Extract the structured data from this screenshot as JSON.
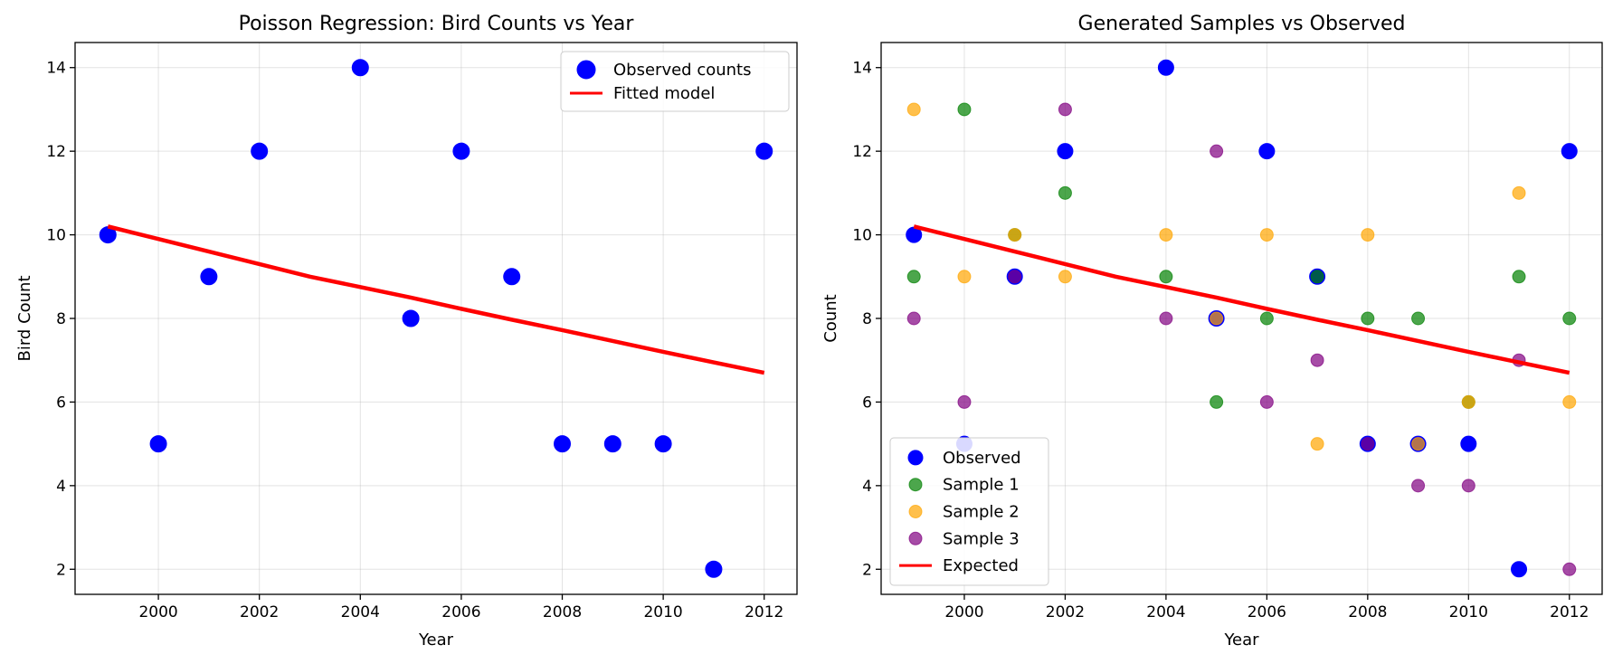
{
  "chart_data": [
    {
      "type": "scatter",
      "title": "Poisson Regression: Bird Counts vs Year",
      "xlabel": "Year",
      "ylabel": "Bird Count",
      "xlim": [
        1998.35,
        2012.65
      ],
      "ylim": [
        1.4,
        14.6
      ],
      "xticks": [
        2000,
        2002,
        2004,
        2006,
        2008,
        2010,
        2012
      ],
      "yticks": [
        2,
        4,
        6,
        8,
        10,
        12,
        14
      ],
      "grid": true,
      "legend_position": "top-right",
      "series": [
        {
          "name": "Observed counts",
          "kind": "scatter",
          "color": "#0000ff",
          "x": [
            1999,
            2000,
            2001,
            2002,
            2004,
            2005,
            2006,
            2007,
            2008,
            2009,
            2010,
            2011,
            2012
          ],
          "y": [
            10,
            5,
            9,
            12,
            14,
            8,
            12,
            9,
            5,
            5,
            5,
            2,
            12
          ]
        },
        {
          "name": "Fitted model",
          "kind": "line",
          "color": "#ff0000",
          "x": [
            1999,
            2000,
            2001,
            2002,
            2003,
            2004,
            2005,
            2006,
            2007,
            2008,
            2009,
            2010,
            2011,
            2012
          ],
          "y": [
            10.2,
            9.9,
            9.6,
            9.3,
            9.0,
            8.75,
            8.5,
            8.23,
            7.97,
            7.72,
            7.46,
            7.2,
            6.95,
            6.7
          ]
        }
      ]
    },
    {
      "type": "scatter",
      "title": "Generated Samples vs Observed",
      "xlabel": "Year",
      "ylabel": "Count",
      "xlim": [
        1998.35,
        2012.65
      ],
      "ylim": [
        1.4,
        14.6
      ],
      "xticks": [
        2000,
        2002,
        2004,
        2006,
        2008,
        2010,
        2012
      ],
      "yticks": [
        2,
        4,
        6,
        8,
        10,
        12,
        14
      ],
      "grid": true,
      "legend_position": "bottom-left",
      "series": [
        {
          "name": "Observed",
          "kind": "scatter",
          "color": "#0000ff",
          "x": [
            1999,
            2000,
            2001,
            2002,
            2004,
            2005,
            2006,
            2007,
            2008,
            2009,
            2010,
            2011,
            2012
          ],
          "y": [
            10,
            5,
            9,
            12,
            14,
            8,
            12,
            9,
            5,
            5,
            5,
            2,
            12
          ]
        },
        {
          "name": "Sample 1",
          "kind": "scatter",
          "color": "#008000",
          "x": [
            1999,
            2000,
            2001,
            2002,
            2004,
            2005,
            2006,
            2007,
            2008,
            2009,
            2010,
            2011,
            2012
          ],
          "y": [
            9,
            13,
            10,
            11,
            9,
            6,
            8,
            9,
            8,
            8,
            6,
            9,
            8
          ]
        },
        {
          "name": "Sample 2",
          "kind": "scatter",
          "color": "#ffa500",
          "x": [
            1999,
            2000,
            2001,
            2002,
            2004,
            2005,
            2006,
            2007,
            2008,
            2009,
            2010,
            2011,
            2012
          ],
          "y": [
            13,
            9,
            10,
            9,
            10,
            8,
            10,
            5,
            10,
            5,
            6,
            11,
            6
          ]
        },
        {
          "name": "Sample 3",
          "kind": "scatter",
          "color": "#800080",
          "x": [
            1999,
            2000,
            2001,
            2002,
            2004,
            2005,
            2006,
            2007,
            2008,
            2009,
            2010,
            2011,
            2012
          ],
          "y": [
            8,
            6,
            9,
            13,
            8,
            12,
            6,
            7,
            5,
            4,
            4,
            7,
            2
          ]
        },
        {
          "name": "Expected",
          "kind": "line",
          "color": "#ff0000",
          "x": [
            1999,
            2000,
            2001,
            2002,
            2003,
            2004,
            2005,
            2006,
            2007,
            2008,
            2009,
            2010,
            2011,
            2012
          ],
          "y": [
            10.2,
            9.9,
            9.6,
            9.3,
            9.0,
            8.75,
            8.5,
            8.23,
            7.97,
            7.72,
            7.46,
            7.2,
            6.95,
            6.7
          ]
        }
      ]
    }
  ]
}
